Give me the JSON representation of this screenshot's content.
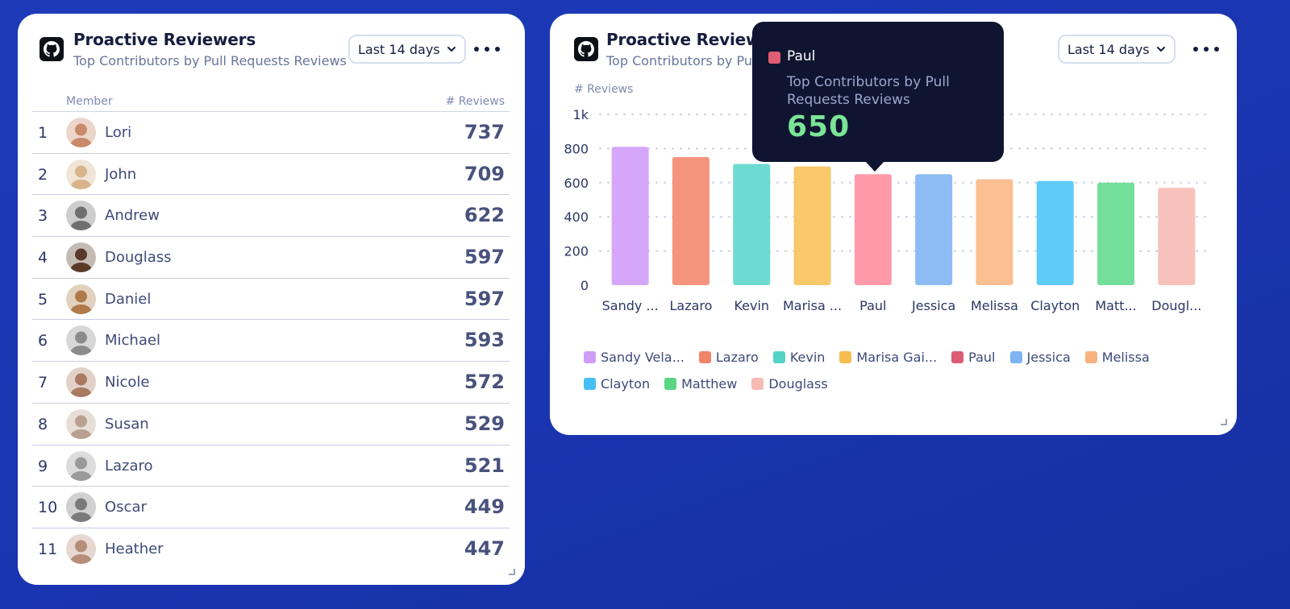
{
  "left_widget": {
    "title": "Proactive Reviewers",
    "subtitle": "Top Contributors by Pull Requests Reviews",
    "range_label": "Last 14 days",
    "columns": {
      "member": "Member",
      "reviews": "# Reviews"
    },
    "rows": [
      {
        "rank": "1",
        "name": "Lori",
        "reviews": "737"
      },
      {
        "rank": "2",
        "name": "John",
        "reviews": "709"
      },
      {
        "rank": "3",
        "name": "Andrew",
        "reviews": "622"
      },
      {
        "rank": "4",
        "name": "Douglass",
        "reviews": "597"
      },
      {
        "rank": "5",
        "name": "Daniel",
        "reviews": "597"
      },
      {
        "rank": "6",
        "name": "Michael",
        "reviews": "593"
      },
      {
        "rank": "7",
        "name": "Nicole",
        "reviews": "572"
      },
      {
        "rank": "8",
        "name": "Susan",
        "reviews": "529"
      },
      {
        "rank": "9",
        "name": "Lazaro",
        "reviews": "521"
      },
      {
        "rank": "10",
        "name": "Oscar",
        "reviews": "449"
      },
      {
        "rank": "11",
        "name": "Heather",
        "reviews": "447"
      }
    ],
    "avatar_colors": [
      "#c98a6a",
      "#d8b48c",
      "#6f6f6f",
      "#5a3b2a",
      "#b07a4a",
      "#8b8b8b",
      "#a97a62",
      "#b9a090",
      "#9a9a9a",
      "#7a7a7a",
      "#b68c7a"
    ]
  },
  "right_widget": {
    "title": "Proactive Reviewers",
    "subtitle": "Top Contributors by Pull Requests Reviews",
    "range_label": "Last 14 days"
  },
  "tooltip": {
    "series": "Paul",
    "subtitle": "Top Contributors by Pull Requests Reviews",
    "value": "650",
    "color": "#e05c74"
  },
  "chart_data": {
    "type": "bar",
    "ylabel": "# Reviews",
    "ylim": [
      0,
      1000
    ],
    "y_ticks": [
      "0",
      "200",
      "400",
      "600",
      "800",
      "1k"
    ],
    "grid": true,
    "legend_placement": "bottom",
    "categories": [
      "Sandy ...",
      "Lazaro",
      "Kevin",
      "Marisa ...",
      "Paul",
      "Jessica",
      "Melissa",
      "Clayton",
      "Matt...",
      "Dougl..."
    ],
    "legend": [
      "Sandy Vela...",
      "Lazaro",
      "Kevin",
      "Marisa Gai...",
      "Paul",
      "Jessica",
      "Melissa",
      "Clayton",
      "Matthew",
      "Douglass"
    ],
    "values": [
      810,
      750,
      710,
      695,
      650,
      650,
      620,
      610,
      600,
      570
    ],
    "colors": [
      "#d6a6fb",
      "#f5947c",
      "#6edbd0",
      "#f8c86a",
      "#ff9aab",
      "#8cbcf3",
      "#fbbf92",
      "#5fcbf7",
      "#74de9b",
      "#f7c2bb"
    ],
    "legend_colors": [
      "#cf9cf6",
      "#ef8468",
      "#55d2c5",
      "#f5bd4f",
      "#dc5c74",
      "#7fb3f2",
      "#f7b17f",
      "#45c0f4",
      "#5ad583",
      "#f6bbb3"
    ]
  }
}
